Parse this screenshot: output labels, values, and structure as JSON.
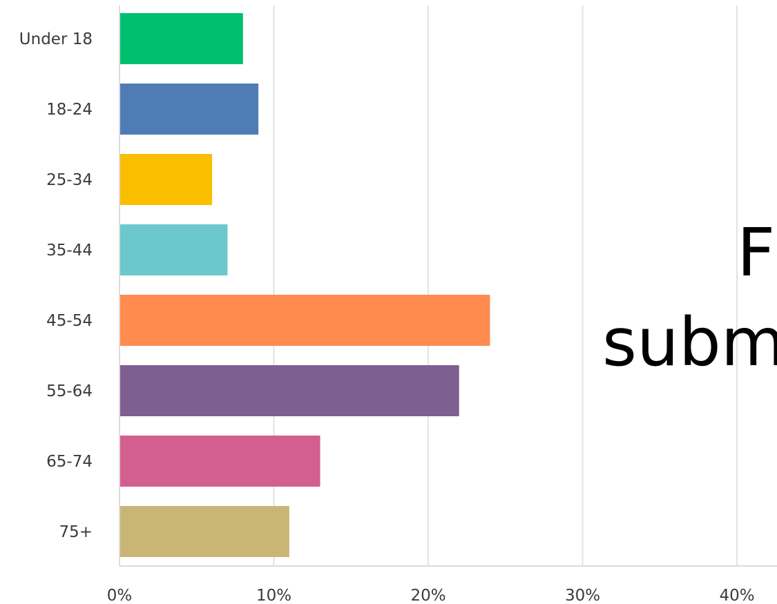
{
  "chart_data": {
    "type": "bar",
    "orientation": "horizontal",
    "categories": [
      "Under 18",
      "18-24",
      "25-34",
      "35-44",
      "45-54",
      "55-64",
      "65-74",
      "75+"
    ],
    "values": [
      8,
      9,
      6,
      7,
      24,
      22,
      13,
      11
    ],
    "value_unit": "%",
    "xlim": [
      0,
      40
    ],
    "x_ticks": [
      "0%",
      "10%",
      "20%",
      "30%",
      "40%"
    ],
    "grid": "vertical",
    "title": "",
    "xlabel": "",
    "ylabel": "",
    "colors": [
      "#00bf6f",
      "#507cb6",
      "#f9be00",
      "#6bc8cd",
      "#ff8b4f",
      "#7f5f90",
      "#d25f90",
      "#c9b677"
    ]
  },
  "overlay": {
    "line1": "F",
    "line2": "subm"
  }
}
